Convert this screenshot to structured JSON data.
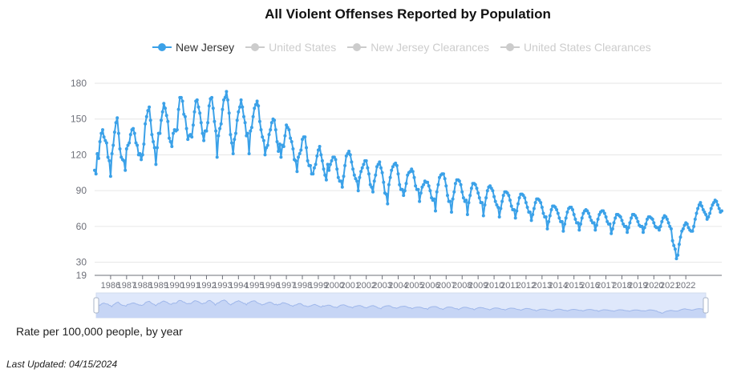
{
  "title": "All Violent Offenses Reported by Population",
  "legend": [
    {
      "label": "New Jersey",
      "active": true,
      "color": "#3ba1e8"
    },
    {
      "label": "United States",
      "active": false,
      "color": "#cccccc"
    },
    {
      "label": "New Jersey Clearances",
      "active": false,
      "color": "#cccccc"
    },
    {
      "label": "United States Clearances",
      "active": false,
      "color": "#cccccc"
    }
  ],
  "caption": "Rate per 100,000 people, by year",
  "last_updated": "Last Updated: 04/15/2024",
  "chart_data": {
    "type": "line",
    "title": "All Violent Offenses Reported by Population",
    "ylabel": "Rate per 100,000 people, by year",
    "ylim": [
      19,
      180
    ],
    "y_ticks": [
      30,
      60,
      90,
      120,
      150,
      180
    ],
    "y_min_label": "19",
    "x_tick_labels": [
      "1986",
      "1987",
      "1988",
      "1989",
      "1990",
      "1991",
      "1992",
      "1993",
      "1994",
      "1995",
      "1996",
      "1997",
      "1998",
      "1999",
      "2000",
      "2001",
      "2002",
      "2003",
      "2004",
      "2005",
      "2006",
      "2007",
      "2008",
      "2009",
      "2010",
      "2011",
      "2012",
      "2013",
      "2014",
      "2015",
      "2016",
      "2017",
      "2018",
      "2019",
      "2020",
      "2021",
      "2022"
    ],
    "series": [
      {
        "name": "New Jersey",
        "color": "#3ba1e8",
        "start": "1985-01",
        "frequency": "monthly",
        "values": [
          107,
          104,
          121,
          117,
          131,
          138,
          141,
          135,
          132,
          130,
          118,
          115,
          102,
          121,
          128,
          139,
          147,
          151,
          138,
          125,
          118,
          116,
          115,
          107,
          125,
          128,
          130,
          137,
          141,
          142,
          138,
          130,
          128,
          120,
          121,
          116,
          120,
          129,
          146,
          152,
          157,
          160,
          149,
          137,
          131,
          126,
          112,
          126,
          138,
          138,
          149,
          156,
          163,
          159,
          153,
          148,
          134,
          131,
          127,
          138,
          141,
          140,
          141,
          158,
          168,
          168,
          165,
          154,
          152,
          142,
          133,
          136,
          137,
          135,
          145,
          156,
          165,
          166,
          160,
          155,
          147,
          138,
          132,
          140,
          140,
          147,
          161,
          167,
          168,
          159,
          148,
          140,
          118,
          136,
          142,
          146,
          158,
          166,
          168,
          173,
          166,
          155,
          137,
          130,
          121,
          133,
          138,
          149,
          156,
          160,
          166,
          160,
          152,
          147,
          136,
          138,
          121,
          140,
          143,
          152,
          159,
          162,
          165,
          161,
          148,
          141,
          135,
          132,
          120,
          126,
          128,
          137,
          141,
          147,
          150,
          149,
          141,
          131,
          123,
          129,
          118,
          128,
          127,
          136,
          145,
          143,
          141,
          134,
          131,
          125,
          116,
          115,
          106,
          118,
          121,
          124,
          133,
          135,
          135,
          126,
          115,
          111,
          111,
          104,
          104,
          109,
          112,
          119,
          124,
          127,
          120,
          115,
          108,
          103,
          99,
          112,
          107,
          112,
          115,
          118,
          118,
          116,
          108,
          101,
          98,
          98,
          93,
          102,
          111,
          119,
          121,
          123,
          120,
          114,
          108,
          103,
          100,
          98,
          90,
          101,
          106,
          109,
          112,
          115,
          115,
          109,
          104,
          95,
          93,
          89,
          98,
          103,
          110,
          112,
          114,
          109,
          105,
          97,
          88,
          87,
          79,
          95,
          101,
          107,
          110,
          112,
          113,
          111,
          104,
          95,
          91,
          91,
          86,
          90,
          96,
          103,
          105,
          106,
          108,
          106,
          101,
          94,
          91,
          91,
          81,
          88,
          93,
          95,
          98,
          97,
          97,
          94,
          90,
          84,
          82,
          83,
          73,
          89,
          95,
          101,
          103,
          104,
          104,
          100,
          94,
          86,
          81,
          81,
          72,
          83,
          89,
          96,
          99,
          99,
          98,
          95,
          89,
          84,
          81,
          82,
          70,
          80,
          86,
          92,
          96,
          96,
          95,
          92,
          88,
          84,
          80,
          80,
          69,
          78,
          84,
          90,
          93,
          94,
          92,
          90,
          85,
          81,
          78,
          76,
          68,
          75,
          81,
          86,
          89,
          89,
          88,
          86,
          82,
          77,
          74,
          74,
          67,
          73,
          79,
          84,
          87,
          87,
          86,
          84,
          80,
          76,
          72,
          72,
          65,
          70,
          75,
          80,
          83,
          83,
          82,
          80,
          76,
          71,
          68,
          68,
          58,
          64,
          69,
          74,
          77,
          77,
          76,
          74,
          71,
          67,
          64,
          64,
          56,
          62,
          67,
          72,
          75,
          76,
          76,
          74,
          70,
          66,
          63,
          63,
          57,
          62,
          67,
          71,
          73,
          74,
          73,
          71,
          68,
          65,
          63,
          63,
          57,
          61,
          66,
          70,
          72,
          73,
          73,
          71,
          68,
          64,
          62,
          62,
          54,
          58,
          63,
          67,
          70,
          70,
          69,
          68,
          65,
          62,
          60,
          60,
          55,
          59,
          63,
          67,
          70,
          70,
          69,
          67,
          64,
          61,
          60,
          60,
          55,
          59,
          62,
          66,
          68,
          68,
          67,
          66,
          63,
          60,
          59,
          59,
          57,
          60,
          64,
          67,
          69,
          68,
          66,
          63,
          60,
          58,
          48,
          44,
          41,
          33,
          36,
          45,
          51,
          56,
          58,
          61,
          63,
          62,
          59,
          57,
          56,
          56,
          60,
          66,
          71,
          75,
          78,
          80,
          77,
          74,
          72,
          70,
          66,
          68,
          71,
          75,
          78,
          80,
          82,
          81,
          78,
          75,
          72,
          73
        ]
      }
    ]
  }
}
